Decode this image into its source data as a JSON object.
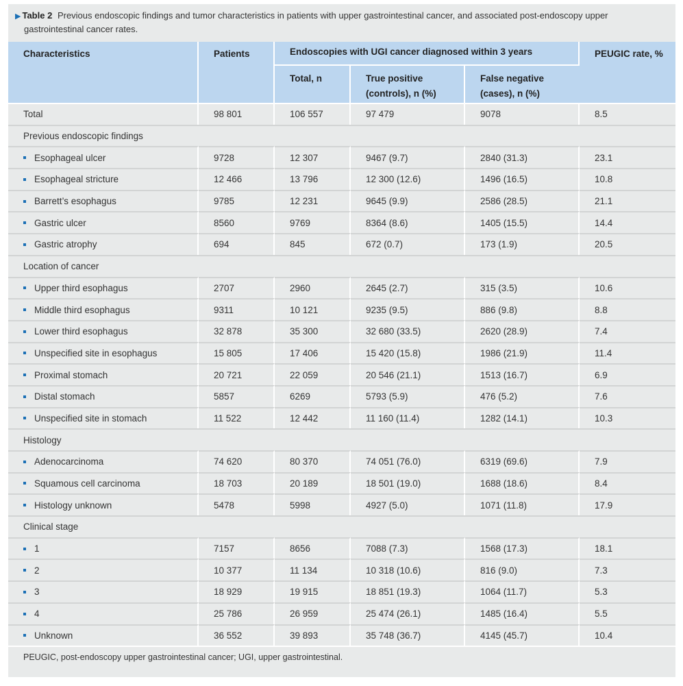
{
  "table": {
    "label": "Table 2",
    "caption": "Previous endoscopic findings and tumor characteristics in patients with upper gastrointestinal cancer, and associated post-endoscopy upper gastrointestinal cancer rates.",
    "headers": {
      "characteristics": "Characteristics",
      "patients": "Patients",
      "group": "Endoscopies with UGI cancer diagnosed within 3 years",
      "total_n": "Total, n",
      "true_positive_line1": "True positive",
      "true_positive_line2": "(controls), n (%)",
      "false_negative_line1": "False negative",
      "false_negative_line2": "(cases), n (%)",
      "peugic_rate": "PEUGIC rate, %"
    },
    "rows": [
      {
        "type": "data",
        "bullet": false,
        "label": "Total",
        "patients": "98 801",
        "total": "106 557",
        "tp": "97 479",
        "fn": "9078",
        "rate": "8.5"
      },
      {
        "type": "section",
        "label": "Previous endoscopic findings"
      },
      {
        "type": "data",
        "bullet": true,
        "label": "Esophageal ulcer",
        "patients": "9728",
        "total": "12 307",
        "tp": "9467 (9.7)",
        "fn": "2840 (31.3)",
        "rate": "23.1"
      },
      {
        "type": "data",
        "bullet": true,
        "label": "Esophageal stricture",
        "patients": "12 466",
        "total": "13 796",
        "tp": "12 300 (12.6)",
        "fn": "1496 (16.5)",
        "rate": "10.8"
      },
      {
        "type": "data",
        "bullet": true,
        "label": "Barrett’s esophagus",
        "patients": "9785",
        "total": "12 231",
        "tp": "9645 (9.9)",
        "fn": "2586 (28.5)",
        "rate": "21.1"
      },
      {
        "type": "data",
        "bullet": true,
        "label": "Gastric ulcer",
        "patients": "8560",
        "total": "9769",
        "tp": "8364 (8.6)",
        "fn": "1405 (15.5)",
        "rate": "14.4"
      },
      {
        "type": "data",
        "bullet": true,
        "label": "Gastric atrophy",
        "patients": "694",
        "total": "845",
        "tp": "672 (0.7)",
        "fn": "173 (1.9)",
        "rate": "20.5"
      },
      {
        "type": "section",
        "label": "Location of cancer"
      },
      {
        "type": "data",
        "bullet": true,
        "label": "Upper third esophagus",
        "patients": "2707",
        "total": "2960",
        "tp": "2645 (2.7)",
        "fn": "315 (3.5)",
        "rate": "10.6"
      },
      {
        "type": "data",
        "bullet": true,
        "label": "Middle third esophagus",
        "patients": "9311",
        "total": "10 121",
        "tp": "9235 (9.5)",
        "fn": "886 (9.8)",
        "rate": "8.8"
      },
      {
        "type": "data",
        "bullet": true,
        "label": "Lower third esophagus",
        "patients": "32 878",
        "total": "35 300",
        "tp": "32 680 (33.5)",
        "fn": "2620 (28.9)",
        "rate": "7.4"
      },
      {
        "type": "data",
        "bullet": true,
        "label": "Unspecified site in esophagus",
        "patients": "15 805",
        "total": "17 406",
        "tp": "15 420 (15.8)",
        "fn": "1986 (21.9)",
        "rate": "11.4"
      },
      {
        "type": "data",
        "bullet": true,
        "label": "Proximal stomach",
        "patients": "20 721",
        "total": "22 059",
        "tp": "20 546 (21.1)",
        "fn": "1513 (16.7)",
        "rate": "6.9"
      },
      {
        "type": "data",
        "bullet": true,
        "label": "Distal stomach",
        "patients": "5857",
        "total": "6269",
        "tp": "5793 (5.9)",
        "fn": "476 (5.2)",
        "rate": "7.6"
      },
      {
        "type": "data",
        "bullet": true,
        "label": "Unspecified site in stomach",
        "patients": "11 522",
        "total": "12 442",
        "tp": "11 160 (11.4)",
        "fn": "1282 (14.1)",
        "rate": "10.3"
      },
      {
        "type": "section",
        "label": "Histology"
      },
      {
        "type": "data",
        "bullet": true,
        "label": "Adenocarcinoma",
        "patients": "74 620",
        "total": "80 370",
        "tp": "74 051 (76.0)",
        "fn": "6319 (69.6)",
        "rate": "7.9"
      },
      {
        "type": "data",
        "bullet": true,
        "label": "Squamous cell carcinoma",
        "patients": "18 703",
        "total": "20 189",
        "tp": "18 501 (19.0)",
        "fn": "1688 (18.6)",
        "rate": "8.4"
      },
      {
        "type": "data",
        "bullet": true,
        "label": "Histology unknown",
        "patients": "5478",
        "total": "5998",
        "tp": "4927 (5.0)",
        "fn": "1071 (11.8)",
        "rate": "17.9"
      },
      {
        "type": "section",
        "label": "Clinical stage"
      },
      {
        "type": "data",
        "bullet": true,
        "label": "1",
        "patients": "7157",
        "total": "8656",
        "tp": "7088 (7.3)",
        "fn": "1568 (17.3)",
        "rate": "18.1"
      },
      {
        "type": "data",
        "bullet": true,
        "label": "2",
        "patients": "10 377",
        "total": "11 134",
        "tp": "10 318 (10.6)",
        "fn": "816 (9.0)",
        "rate": "7.3"
      },
      {
        "type": "data",
        "bullet": true,
        "label": "3",
        "patients": "18 929",
        "total": "19 915",
        "tp": "18 851 (19.3)",
        "fn": "1064 (11.7)",
        "rate": "5.3"
      },
      {
        "type": "data",
        "bullet": true,
        "label": "4",
        "patients": "25 786",
        "total": "26 959",
        "tp": "25 474 (26.1)",
        "fn": "1485 (16.4)",
        "rate": "5.5"
      },
      {
        "type": "data",
        "bullet": true,
        "label": "Unknown",
        "patients": "36 552",
        "total": "39 893",
        "tp": "35 748 (36.7)",
        "fn": "4145 (45.7)",
        "rate": "10.4"
      }
    ],
    "footnote": "PEUGIC, post-endoscopy upper gastrointestinal cancer; UGI, upper gastrointestinal."
  },
  "colors": {
    "header_bg": "#bcd6ef",
    "row_bg": "#e8eaea",
    "accent": "#1a6fb5"
  }
}
